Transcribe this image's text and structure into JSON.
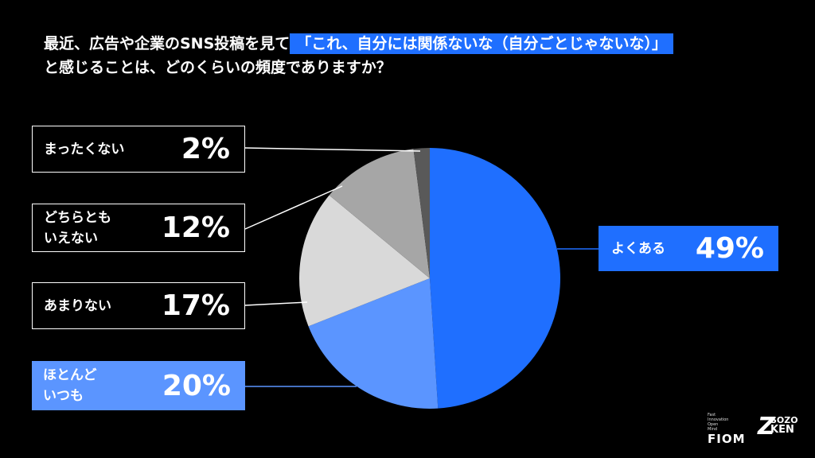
{
  "title": {
    "line1_pre": "最近、広告や企業のSNS投稿を見て",
    "line1_highlight": "「これ、自分には関係ないな（自分ごとじゃないな）」",
    "line2": "と感じることは、どのくらいの頻度でありますか？"
  },
  "chart_data": {
    "type": "pie",
    "slices": [
      {
        "label": "よくある",
        "value": 49,
        "display": "49%",
        "color": "#1f6fff"
      },
      {
        "label": "ほとんどいつも",
        "value": 20,
        "display": "20%",
        "color": "#5b95ff"
      },
      {
        "label": "あまりない",
        "value": 17,
        "display": "17%",
        "color": "#d9d9d9"
      },
      {
        "label": "どちらともいえない",
        "value": 12,
        "display": "12%",
        "color": "#a6a6a6"
      },
      {
        "label": "まったくない",
        "value": 2,
        "display": "2%",
        "color": "#595959"
      }
    ]
  },
  "callouts": {
    "yoku": {
      "label": "よくある",
      "pct": "49%"
    },
    "hotondo": {
      "label_1": "ほとんど",
      "label_2": "いつも",
      "pct": "20%"
    },
    "amari": {
      "label": "あまりない",
      "pct": "17%"
    },
    "dochira": {
      "label_1": "どちらとも",
      "label_2": "いえない",
      "pct": "12%"
    },
    "mattaku": {
      "label": "まったくない",
      "pct": "2%"
    }
  },
  "logos": {
    "fiom_small": [
      "Fast",
      "Innovation",
      "Open",
      "Mind"
    ],
    "fiom": "FIOM",
    "zk_z": "Z",
    "zk_sozo": "SOZO",
    "zk_ken": "KEN"
  }
}
